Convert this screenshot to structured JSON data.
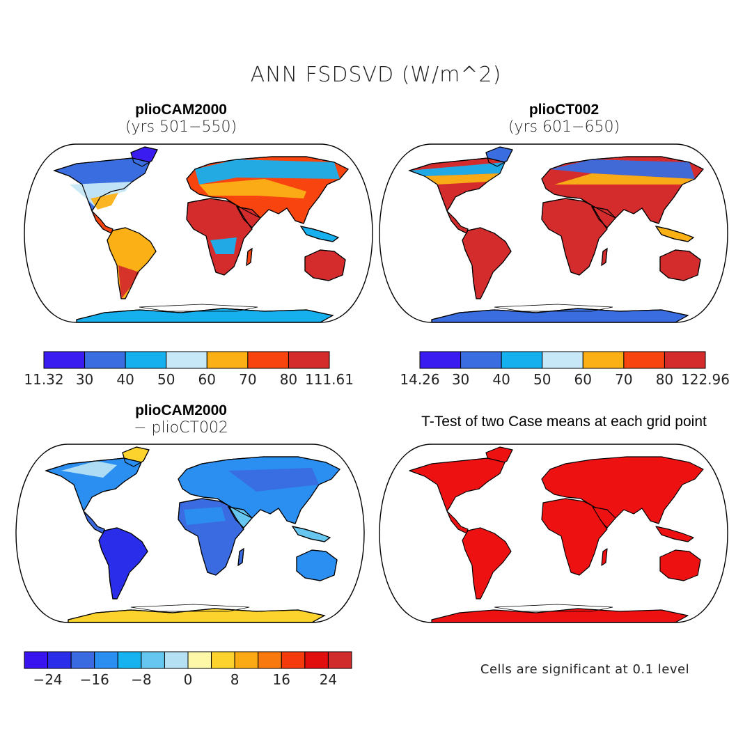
{
  "figure": {
    "title": "ANN FSDSVD (W/m^2)"
  },
  "panels": {
    "top_left": {
      "title": "plioCAM2000",
      "subtitle": "(yrs 501−550)",
      "colorbar": {
        "colors": [
          "#3b1cf0",
          "#3a6ee0",
          "#17b0ef",
          "#c7e8f7",
          "#fbb116",
          "#f8440f",
          "#d42c2c"
        ],
        "labels": [
          "11.32",
          "30",
          "40",
          "50",
          "60",
          "70",
          "80",
          "111.61"
        ]
      }
    },
    "top_right": {
      "title": "plioCT002",
      "subtitle": "(yrs 601−650)",
      "colorbar": {
        "colors": [
          "#3b1cf0",
          "#3a6ee0",
          "#17b0ef",
          "#c7e8f7",
          "#fbb116",
          "#f8440f",
          "#d42c2c"
        ],
        "labels": [
          "14.26",
          "30",
          "40",
          "50",
          "60",
          "70",
          "80",
          "122.96"
        ]
      }
    },
    "bottom_left": {
      "title": "plioCAM2000",
      "subtitle": "− plioCT002",
      "colorbar": {
        "colors": [
          "#3a14ee",
          "#2a2eea",
          "#3a6be0",
          "#2a8ff0",
          "#16b3f0",
          "#66c6f0",
          "#b5e0f4",
          "#fcf8a8",
          "#fcd22c",
          "#fbaa14",
          "#f8790e",
          "#f53b0e",
          "#e20e0e",
          "#d12c2c"
        ],
        "labels": [
          "−24",
          "−16",
          "−8",
          "0",
          "8",
          "16",
          "24"
        ]
      }
    },
    "bottom_right": {
      "title": "T-Test of two Case means at each grid point",
      "note": "Cells are significant at 0.1 level",
      "fill_color": "#ee1111"
    }
  }
}
